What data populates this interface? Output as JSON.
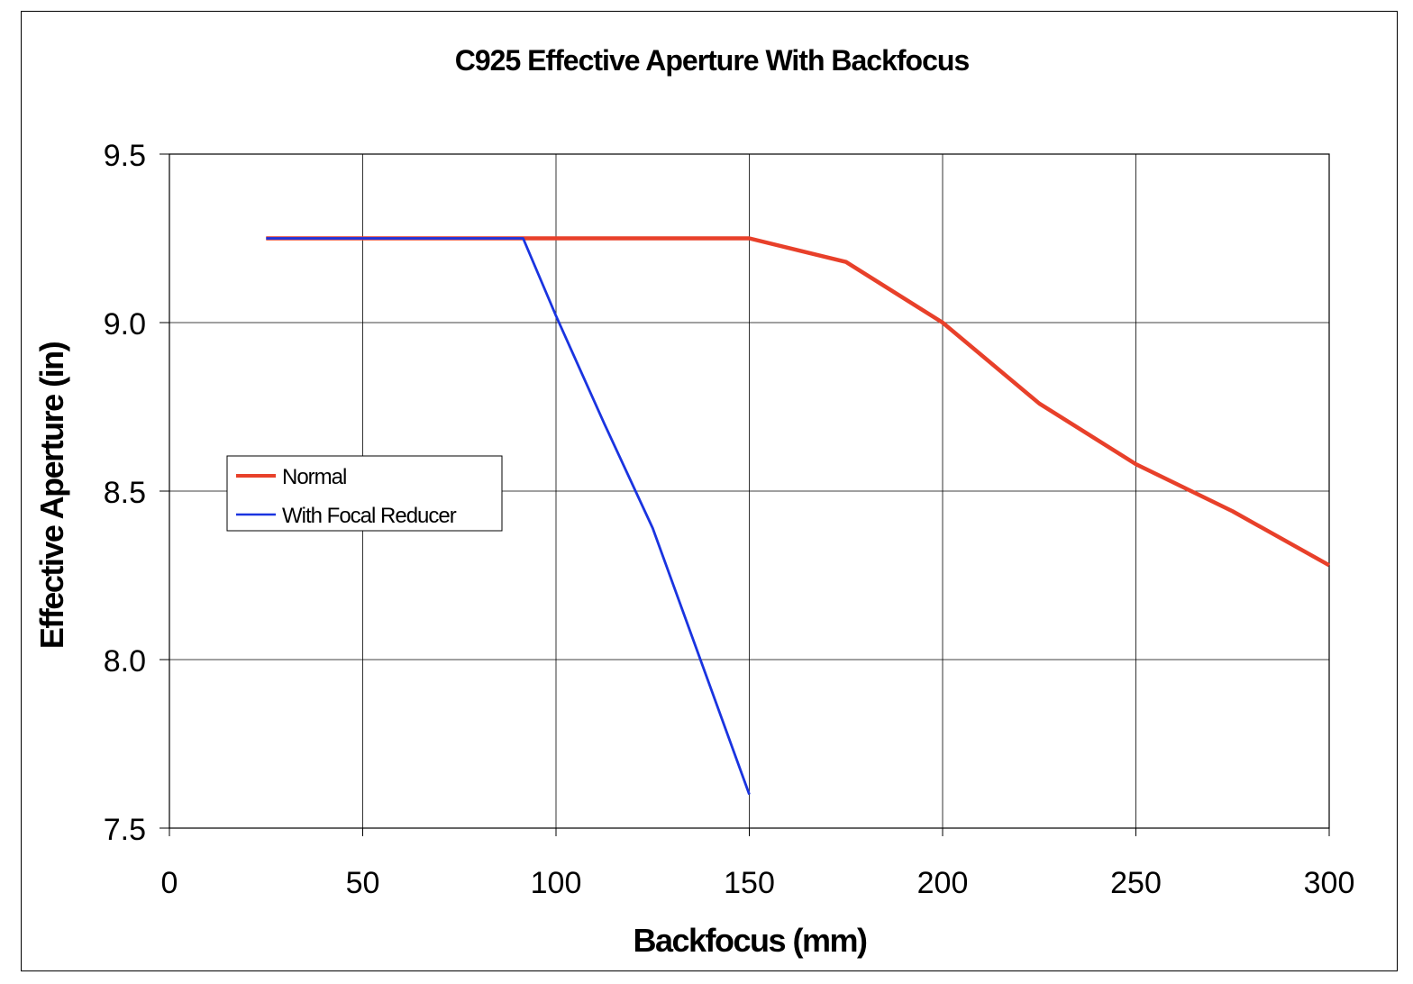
{
  "chart_data": {
    "type": "line",
    "title": "C925 Effective Aperture With Backfocus",
    "xlabel": "Backfocus (mm)",
    "ylabel": "Effective Aperture (in)",
    "xlim": [
      0,
      300
    ],
    "ylim": [
      7.5,
      9.5
    ],
    "xticks": [
      0,
      50,
      100,
      150,
      200,
      250,
      300
    ],
    "yticks": [
      7.5,
      8.0,
      8.5,
      9.0,
      9.5
    ],
    "xtick_labels": [
      "0",
      "50",
      "100",
      "150",
      "200",
      "250",
      "300"
    ],
    "ytick_labels": [
      "7.5",
      "8.0",
      "8.5",
      "9.0",
      "9.5"
    ],
    "grid": true,
    "legend_position": "middle-left",
    "series": [
      {
        "name": "Normal",
        "color": "#e8402a",
        "x": [
          25,
          50,
          75,
          100,
          113,
          125,
          150,
          175,
          200,
          225,
          250,
          275,
          300
        ],
        "y": [
          9.25,
          9.25,
          9.25,
          9.25,
          9.25,
          9.25,
          9.25,
          9.18,
          9.0,
          8.76,
          8.58,
          8.44,
          8.28
        ]
      },
      {
        "name": "With Focal Reducer",
        "color": "#1a34e0",
        "x": [
          25,
          50,
          75,
          91.5,
          100,
          112.5,
          125,
          150
        ],
        "y": [
          9.25,
          9.25,
          9.25,
          9.25,
          9.02,
          8.7,
          8.39,
          7.6
        ]
      }
    ]
  }
}
